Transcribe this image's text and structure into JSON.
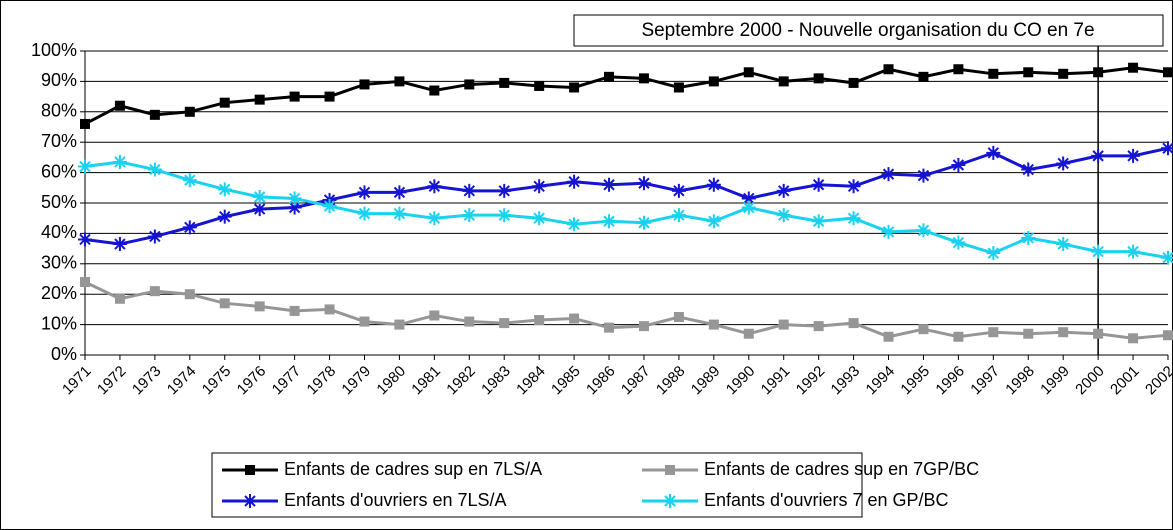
{
  "chart_data": {
    "type": "line",
    "annotation": {
      "text": "Septembre 2000 - Nouvelle organisation du CO en 7e",
      "x": 2000
    },
    "x": [
      1971,
      1972,
      1973,
      1974,
      1975,
      1976,
      1977,
      1978,
      1979,
      1980,
      1981,
      1982,
      1983,
      1984,
      1985,
      1986,
      1987,
      1988,
      1989,
      1990,
      1991,
      1992,
      1993,
      1994,
      1995,
      1996,
      1997,
      1998,
      1999,
      2000,
      2001,
      2002
    ],
    "xlim": [
      1971,
      2002
    ],
    "xticks": [
      1971,
      1972,
      1973,
      1974,
      1975,
      1976,
      1977,
      1978,
      1979,
      1980,
      1981,
      1982,
      1983,
      1984,
      1985,
      1986,
      1987,
      1988,
      1989,
      1990,
      1991,
      1992,
      1993,
      1994,
      1995,
      1996,
      1997,
      1998,
      1999,
      2000,
      2001,
      2002
    ],
    "ylim": [
      0,
      100
    ],
    "yticks": [
      {
        "value": 0,
        "label": "0%"
      },
      {
        "value": 10,
        "label": "10%"
      },
      {
        "value": 20,
        "label": "20%"
      },
      {
        "value": 30,
        "label": "30%"
      },
      {
        "value": 40,
        "label": "40%"
      },
      {
        "value": 50,
        "label": "50%"
      },
      {
        "value": 60,
        "label": "60%"
      },
      {
        "value": 70,
        "label": "70%"
      },
      {
        "value": 80,
        "label": "80%"
      },
      {
        "value": 90,
        "label": "90%"
      },
      {
        "value": 100,
        "label": "100%"
      }
    ],
    "grid": true,
    "legend": "bottom",
    "series": [
      {
        "name": "Enfants de cadres sup en 7LS/A",
        "color": "#000000",
        "marker": "square",
        "values": [
          76,
          82,
          79,
          80,
          83,
          84,
          85,
          85,
          89,
          90,
          87,
          89,
          89.5,
          88.5,
          88,
          91.5,
          91,
          88,
          90,
          93,
          90,
          91,
          89.5,
          94,
          91.5,
          94,
          92.5,
          93,
          92.5,
          93,
          94.5,
          93
        ]
      },
      {
        "name": "Enfants de cadres sup en 7GP/BC",
        "color": "#969696",
        "marker": "square",
        "values": [
          24,
          18.5,
          21,
          20,
          17,
          16,
          14.5,
          15,
          11,
          10,
          13,
          11,
          10.5,
          11.5,
          12,
          9,
          9.5,
          12.5,
          10,
          7,
          10,
          9.5,
          10.5,
          6,
          8.5,
          6,
          7.5,
          7,
          7.5,
          7,
          5.5,
          6.5
        ]
      },
      {
        "name": "Enfants d'ouvriers en 7LS/A",
        "color": "#1414d2",
        "marker": "star",
        "values": [
          38,
          36.5,
          39,
          42,
          45.5,
          48,
          48.5,
          51,
          53.5,
          53.5,
          55.5,
          54,
          54,
          55.5,
          57,
          56,
          56.5,
          54,
          56,
          51.5,
          54,
          56,
          55.5,
          59.5,
          59,
          62.5,
          66.5,
          61,
          63,
          65.5,
          65.5,
          68
        ]
      },
      {
        "name": "Enfants d'ouvriers 7 en GP/BC",
        "color": "#19d2f0",
        "marker": "star",
        "values": [
          62,
          63.5,
          61,
          57.5,
          54.5,
          52,
          51.5,
          49,
          46.5,
          46.5,
          45,
          46,
          46,
          45,
          43,
          44,
          43.5,
          46,
          44,
          48.5,
          46,
          44,
          45,
          40.5,
          41,
          37,
          33.5,
          38.5,
          36.5,
          34,
          34,
          32
        ]
      }
    ]
  }
}
